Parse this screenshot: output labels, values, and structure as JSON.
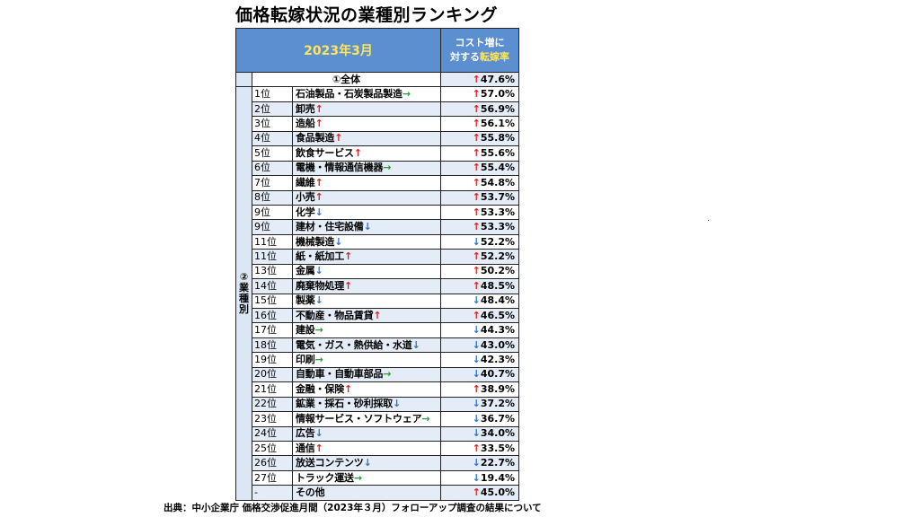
{
  "title": "価格転嫁状況の業種別ランキング",
  "header": {
    "date": "2023年3月",
    "rate_line1": "コスト増に",
    "rate_line2a": "対する",
    "rate_line2b": "転嫁率"
  },
  "overall": {
    "label": "①全体",
    "value": "47.6%",
    "arrow": "up"
  },
  "category_label": "②業種別",
  "arrow_glyphs": {
    "up": "↑",
    "down": "↓",
    "flat": "→"
  },
  "colors": {
    "header_bg": "#5b8fd0",
    "header_highlight": "#ffe55b",
    "up": "#e02020",
    "down": "#2f73d0",
    "flat": "#2a9a3a"
  },
  "rows": [
    {
      "rank": "1位",
      "name": "石油製品・石炭製品製造",
      "trend": "flat",
      "value": "57.0%",
      "arrow": "up"
    },
    {
      "rank": "2位",
      "name": "卸売",
      "trend": "up",
      "value": "56.9%",
      "arrow": "up"
    },
    {
      "rank": "3位",
      "name": "造船",
      "trend": "up",
      "value": "56.1%",
      "arrow": "up"
    },
    {
      "rank": "4位",
      "name": "食品製造",
      "trend": "up",
      "value": "55.8%",
      "arrow": "up"
    },
    {
      "rank": "5位",
      "name": "飲食サービス",
      "trend": "up",
      "value": "55.6%",
      "arrow": "up"
    },
    {
      "rank": "6位",
      "name": "電機・情報通信機器",
      "trend": "flat",
      "value": "55.4%",
      "arrow": "up"
    },
    {
      "rank": "7位",
      "name": "繊維",
      "trend": "up",
      "value": "54.8%",
      "arrow": "up"
    },
    {
      "rank": "8位",
      "name": "小売",
      "trend": "up",
      "value": "53.7%",
      "arrow": "up"
    },
    {
      "rank": "9位",
      "name": "化学",
      "trend": "down",
      "value": "53.3%",
      "arrow": "up"
    },
    {
      "rank": "9位",
      "name": "建材・住宅設備",
      "trend": "down",
      "value": "53.3%",
      "arrow": "up"
    },
    {
      "rank": "11位",
      "name": "機械製造",
      "trend": "down",
      "value": "52.2%",
      "arrow": "down"
    },
    {
      "rank": "11位",
      "name": "紙・紙加工",
      "trend": "up",
      "value": "52.2%",
      "arrow": "up"
    },
    {
      "rank": "13位",
      "name": "金属",
      "trend": "down",
      "value": "50.2%",
      "arrow": "up"
    },
    {
      "rank": "14位",
      "name": "廃棄物処理",
      "trend": "up",
      "value": "48.5%",
      "arrow": "up"
    },
    {
      "rank": "15位",
      "name": "製薬",
      "trend": "down",
      "value": "48.4%",
      "arrow": "down"
    },
    {
      "rank": "16位",
      "name": "不動産・物品賃貸",
      "trend": "up",
      "value": "46.5%",
      "arrow": "up"
    },
    {
      "rank": "17位",
      "name": "建設",
      "trend": "flat",
      "value": "44.3%",
      "arrow": "down"
    },
    {
      "rank": "18位",
      "name": "電気・ガス・熱供給・水道",
      "trend": "down",
      "value": "43.0%",
      "arrow": "down"
    },
    {
      "rank": "19位",
      "name": "印刷",
      "trend": "flat",
      "value": "42.3%",
      "arrow": "down"
    },
    {
      "rank": "20位",
      "name": "自動車・自動車部品",
      "trend": "flat",
      "value": "40.7%",
      "arrow": "down"
    },
    {
      "rank": "21位",
      "name": "金融・保険",
      "trend": "up",
      "value": "38.9%",
      "arrow": "up"
    },
    {
      "rank": "22位",
      "name": "鉱業・採石・砂利採取",
      "trend": "down",
      "value": "37.2%",
      "arrow": "down"
    },
    {
      "rank": "23位",
      "name": "情報サービス・ソフトウェア",
      "trend": "flat",
      "value": "36.7%",
      "arrow": "down"
    },
    {
      "rank": "24位",
      "name": "広告",
      "trend": "down",
      "value": "34.0%",
      "arrow": "down"
    },
    {
      "rank": "25位",
      "name": "通信",
      "trend": "up",
      "value": "33.5%",
      "arrow": "up"
    },
    {
      "rank": "26位",
      "name": "放送コンテンツ",
      "trend": "down",
      "value": "22.7%",
      "arrow": "down"
    },
    {
      "rank": "27位",
      "name": "トラック運送",
      "trend": "flat",
      "value": "19.4%",
      "arrow": "down"
    },
    {
      "rank": "-",
      "name": "その他",
      "trend": "",
      "value": "45.0%",
      "arrow": "up"
    }
  ],
  "source": "出典：中小企業庁 価格交渉促進月間（2023年３月）フォローアップ調査の結果について"
}
